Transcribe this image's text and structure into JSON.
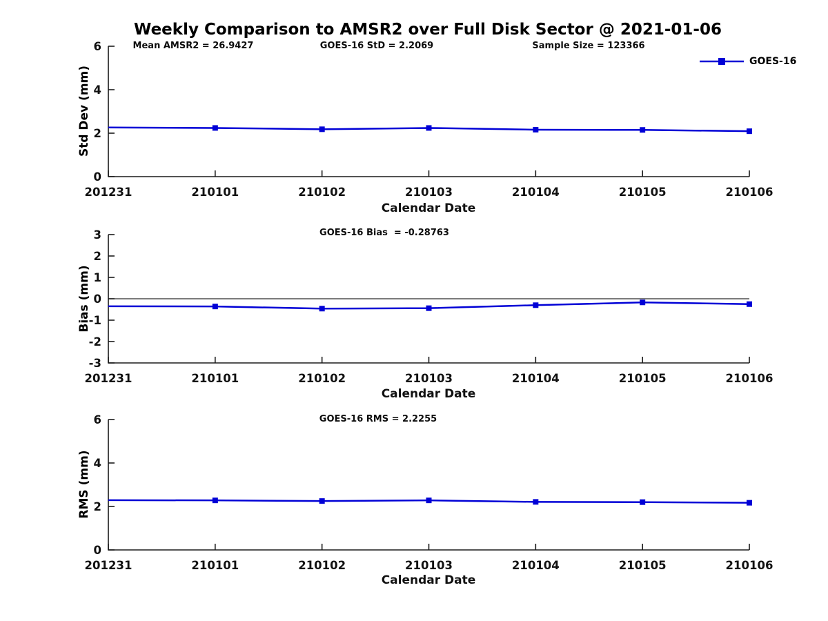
{
  "title": "Weekly Comparison to AMSR2 over Full Disk Sector @ 2021-01-06",
  "legend": {
    "label": "GOES-16"
  },
  "colors": {
    "line": "#0000d6",
    "axis": "#1a1a1a",
    "zero_line": "#2a2a2a",
    "text": "#000000"
  },
  "stats": {
    "mean_amsr2": "26.9427",
    "goes16_std": "2.2069",
    "sample_size": "123366",
    "goes16_bias": "-0.28763",
    "goes16_rms": "2.2255"
  },
  "chart_data": [
    {
      "type": "line",
      "series_name": "GOES-16",
      "annotations": [
        "Mean AMSR2 = 26.9427",
        "GOES-16 StD = 2.2069",
        "Sample Size = 123366"
      ],
      "xlabel": "Calendar Date",
      "ylabel": "Std Dev (mm)",
      "categories": [
        "201231",
        "210101",
        "210102",
        "210103",
        "210104",
        "210105",
        "210106"
      ],
      "values": [
        2.26,
        2.24,
        2.18,
        2.24,
        2.16,
        2.15,
        2.09
      ],
      "ylim": [
        0,
        6
      ],
      "yticks": [
        0,
        2,
        4,
        6
      ],
      "zero_line": false,
      "legend_position": "top-right",
      "grid": false
    },
    {
      "type": "line",
      "series_name": "GOES-16",
      "annotations": [
        "GOES-16 Bias  = -0.28763"
      ],
      "xlabel": "Calendar Date",
      "ylabel": "Bias (mm)",
      "categories": [
        "201231",
        "210101",
        "210102",
        "210103",
        "210104",
        "210105",
        "210106"
      ],
      "values": [
        -0.35,
        -0.36,
        -0.46,
        -0.44,
        -0.3,
        -0.17,
        -0.25
      ],
      "ylim": [
        -3,
        3
      ],
      "yticks": [
        -3,
        -2,
        -1,
        0,
        1,
        2,
        3
      ],
      "zero_line": true,
      "grid": false
    },
    {
      "type": "line",
      "series_name": "GOES-16",
      "annotations": [
        "GOES-16 RMS = 2.2255"
      ],
      "xlabel": "Calendar Date",
      "ylabel": "RMS (mm)",
      "categories": [
        "201231",
        "210101",
        "210102",
        "210103",
        "210104",
        "210105",
        "210106"
      ],
      "values": [
        2.29,
        2.28,
        2.25,
        2.28,
        2.21,
        2.2,
        2.17
      ],
      "ylim": [
        0,
        6
      ],
      "yticks": [
        0,
        2,
        4,
        6
      ],
      "zero_line": false,
      "grid": false
    }
  ]
}
